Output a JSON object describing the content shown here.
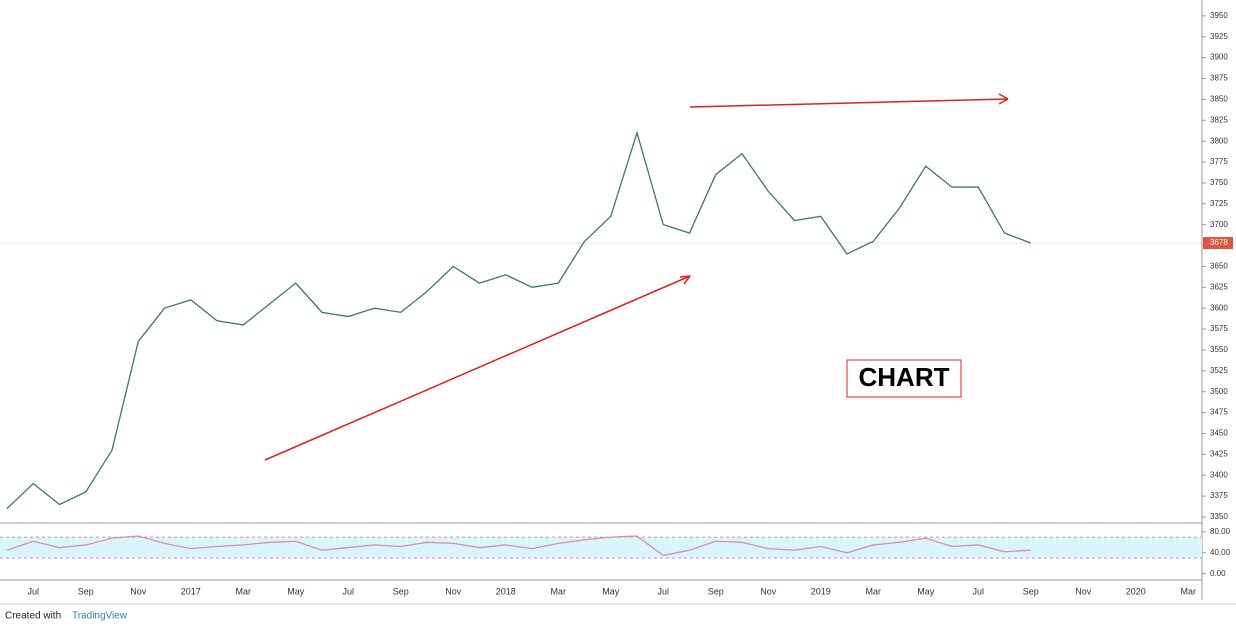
{
  "chart_data": [
    {
      "type": "line",
      "categories": [
        null,
        "Jul",
        null,
        "Sep",
        null,
        "Nov",
        null,
        "2017",
        null,
        "Mar",
        null,
        "May",
        null,
        "Jul",
        null,
        "Sep",
        null,
        "Nov",
        null,
        "2018",
        null,
        "Mar",
        null,
        "May",
        null,
        "Jul",
        null,
        "Sep",
        null,
        "Nov",
        null,
        "2019",
        null,
        "Mar",
        null,
        "May",
        null,
        "Jul",
        null,
        "Sep",
        null,
        "Nov",
        null,
        "2020",
        null,
        "Mar"
      ],
      "series": [
        {
          "color": "#3d7a5c",
          "values": [
            3360,
            3390,
            3365,
            3380,
            3430,
            3560,
            3600,
            3610,
            3585,
            3580,
            3605,
            3630,
            3595,
            3590,
            3600,
            3595,
            3620,
            3650,
            3630,
            3640,
            3625,
            3630,
            3680,
            3710,
            3810,
            3700,
            3690,
            3760,
            3785,
            3740,
            3705,
            3710,
            3665,
            3680,
            3720,
            3770,
            3745,
            3745,
            3690,
            3678,
            null,
            null,
            null,
            null,
            null,
            null
          ]
        }
      ],
      "ylim": [
        3344,
        3969
      ],
      "yticks": [
        3350,
        3375,
        3400,
        3425,
        3450,
        3475,
        3500,
        3525,
        3550,
        3575,
        3600,
        3625,
        3650,
        3675,
        3700,
        3725,
        3750,
        3775,
        3800,
        3825,
        3850,
        3875,
        3900,
        3925,
        3950
      ],
      "last_price": 3678,
      "last_price_color": "#e0533f",
      "annotation": "CHART"
    },
    {
      "type": "line",
      "series": [
        {
          "color": "#d88fb0",
          "values": [
            45,
            62,
            50,
            55,
            68,
            72,
            58,
            48,
            52,
            55,
            60,
            62,
            45,
            50,
            55,
            52,
            60,
            58,
            50,
            55,
            48,
            58,
            65,
            70,
            72,
            35,
            45,
            62,
            60,
            48,
            45,
            52,
            40,
            55,
            60,
            68,
            52,
            55,
            42,
            45,
            null,
            null,
            null,
            null,
            null,
            null
          ]
        }
      ],
      "ylim": [
        -10,
        95
      ],
      "yticks": [
        {
          "value": 0,
          "label": "0.00"
        },
        {
          "value": 40,
          "label": "40.00"
        },
        {
          "value": 80,
          "label": "80.00"
        }
      ],
      "band": [
        30,
        70
      ],
      "band_color": "#d9f5fb"
    }
  ],
  "footer": {
    "prefix": "Created with",
    "brand": "TradingView"
  }
}
